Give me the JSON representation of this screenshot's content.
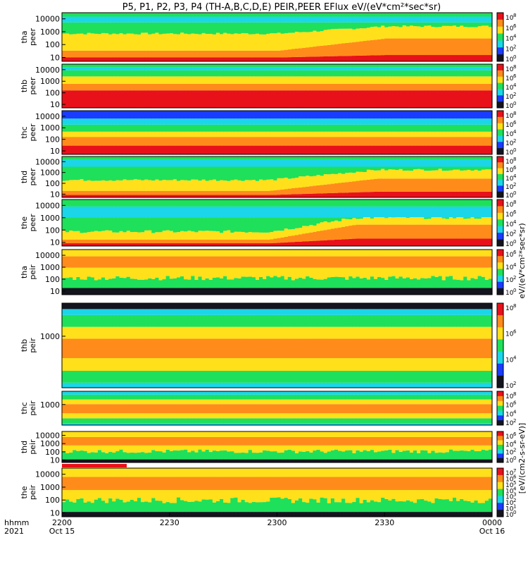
{
  "chart_data": {
    "type": "heatmap",
    "title": "P5, P1, P2, P3, P4 (TH-A,B,C,D,E) PEIR,PEER EFlux eV/(eV*cm²*sec*sr)",
    "xlabel_left_top": "hhmm",
    "xlabel_left_bottom": "2021",
    "x_ticks": [
      {
        "label": "2200",
        "date": "Oct 15",
        "t": 0
      },
      {
        "label": "2230",
        "date": "",
        "t": 30
      },
      {
        "label": "2300",
        "date": "",
        "t": 60
      },
      {
        "label": "2330",
        "date": "",
        "t": 90
      },
      {
        "label": "0000",
        "date": "Oct 16",
        "t": 120
      }
    ],
    "xlim_minutes": [
      0,
      120
    ],
    "colorbar_label_top": "eV/(eV*cm²*sec*sr)",
    "colorbar_label_bottom": "[eV/(cm2-s-sr-eV)]",
    "panels": [
      {
        "name": "tha-peer",
        "label1": "tha",
        "label2": "peer",
        "yticks": [
          "10000",
          "1000",
          "100",
          "10"
        ],
        "ylim": [
          5,
          30000
        ],
        "scale": "log",
        "ytick_values": [
          10000,
          1000,
          100,
          10
        ],
        "pattern": "tha_peer",
        "cb_exps": [
          "8",
          "6",
          "4",
          "2",
          "0"
        ]
      },
      {
        "name": "thb-peer",
        "label1": "thb",
        "label2": "peer",
        "yticks": [
          "10000",
          "1000",
          "100",
          "10"
        ],
        "ylim": [
          5,
          30000
        ],
        "scale": "log",
        "ytick_values": [
          10000,
          1000,
          100,
          10
        ],
        "pattern": "thb_peer",
        "cb_exps": [
          "8",
          "6",
          "4",
          "2",
          "0"
        ]
      },
      {
        "name": "thc-peer",
        "label1": "thc",
        "label2": "peer",
        "yticks": [
          "10000",
          "1000",
          "100",
          "10"
        ],
        "ylim": [
          5,
          30000
        ],
        "scale": "log",
        "ytick_values": [
          10000,
          1000,
          100,
          10
        ],
        "pattern": "thc_peer",
        "cb_exps": [
          "8",
          "6",
          "4",
          "2",
          "0"
        ]
      },
      {
        "name": "thd-peer",
        "label1": "thd",
        "label2": "peer",
        "yticks": [
          "10000",
          "1000",
          "100",
          "10"
        ],
        "ylim": [
          5,
          30000
        ],
        "scale": "log",
        "ytick_values": [
          10000,
          1000,
          100,
          10
        ],
        "pattern": "thd_peer",
        "cb_exps": [
          "8",
          "6",
          "4",
          "2",
          "0"
        ]
      },
      {
        "name": "the-peer",
        "label1": "the",
        "label2": "peer",
        "yticks": [
          "10000",
          "1000",
          "100",
          "10"
        ],
        "ylim": [
          5,
          30000
        ],
        "scale": "log",
        "ytick_values": [
          10000,
          1000,
          100,
          10
        ],
        "pattern": "the_peer",
        "cb_exps": [
          "8",
          "6",
          "4",
          "2",
          "0"
        ]
      },
      {
        "name": "tha-peir",
        "label1": "tha",
        "label2": "peir",
        "yticks": [
          "10000",
          "1000",
          "100",
          "10"
        ],
        "ylim": [
          5,
          30000
        ],
        "scale": "log",
        "ytick_values": [
          10000,
          1000,
          100,
          10
        ],
        "pattern": "tha_peir",
        "cb_exps": [
          "6",
          "4",
          "2",
          "0"
        ]
      },
      {
        "name": "thb-peir",
        "label1": "thb",
        "label2": "peir",
        "yticks": [
          "1000"
        ],
        "ylim": [
          5,
          30000
        ],
        "scale": "log",
        "ytick_values": [
          1000
        ],
        "pattern": "thb_peir",
        "cb_exps": [
          "8",
          "6",
          "4",
          "2"
        ]
      },
      {
        "name": "thc-peir",
        "label1": "thc",
        "label2": "peir",
        "yticks": [
          "1000"
        ],
        "ylim": [
          5,
          30000
        ],
        "scale": "log",
        "ytick_values": [
          1000
        ],
        "pattern": "thc_peir",
        "cb_exps": [
          "8",
          "6",
          "4",
          "2"
        ]
      },
      {
        "name": "thd-peir",
        "label1": "thd",
        "label2": "peir",
        "yticks": [
          "10000",
          "1000",
          "100",
          "10"
        ],
        "ylim": [
          5,
          30000
        ],
        "scale": "log",
        "ytick_values": [
          10000,
          1000,
          100,
          10
        ],
        "pattern": "thd_peir",
        "cb_exps": [
          "6",
          "4",
          "2",
          "0"
        ]
      },
      {
        "name": "the-peir",
        "label1": "the",
        "label2": "peir",
        "yticks": [
          "10000",
          "1000",
          "100",
          "10"
        ],
        "ylim": [
          5,
          30000
        ],
        "scale": "log",
        "ytick_values": [
          10000,
          1000,
          100,
          10
        ],
        "pattern": "the_peir",
        "cb_exps": [
          "7",
          "6",
          "5",
          "4",
          "3",
          "2",
          "1",
          "0"
        ]
      }
    ],
    "colorbar_base": "10",
    "colors": {
      "red": "#e8111a",
      "orange": "#ff8c1a",
      "yellow": "#ffe01a",
      "green": "#1fe05a",
      "cyan": "#1ad6e8",
      "blue": "#1a3cff",
      "dark": "#14141e"
    },
    "grid": false,
    "legend": "none"
  }
}
